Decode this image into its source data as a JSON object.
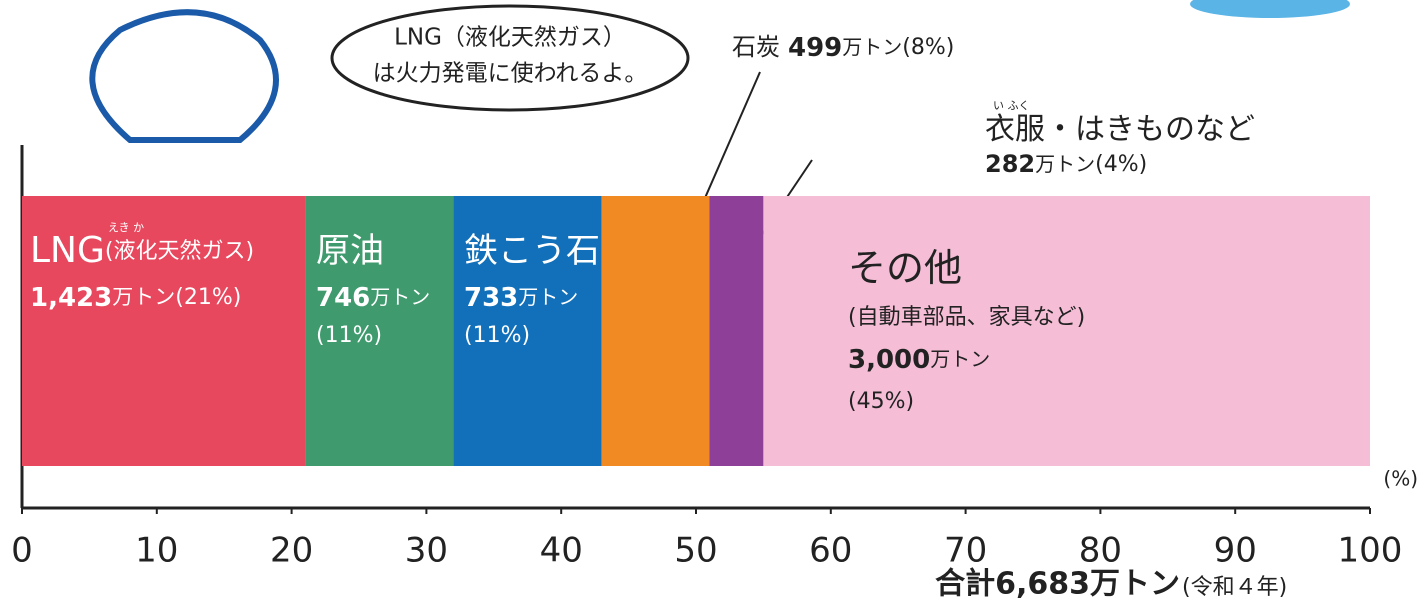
{
  "chart_data": {
    "type": "stacked-bar",
    "bubble": [
      "LNG（液化天然ガス）",
      "は火力発電に使われるよ。"
    ],
    "series": [
      {
        "name": "LNG",
        "note": "(液化天然ガス)",
        "ruby": "えき か",
        "amount": "1,423",
        "unit": "万トン",
        "values": [
          21
        ],
        "value_labels": [
          "(21%)"
        ],
        "color": "#e8485e"
      },
      {
        "name": "原油",
        "amount": "746",
        "unit": "万トン",
        "values": [
          11
        ],
        "value_labels": [
          "(11%)"
        ],
        "color": "#3f9a6e"
      },
      {
        "name": "鉄こう石",
        "amount": "733",
        "unit": "万トン",
        "values": [
          11
        ],
        "value_labels": [
          "(11%)"
        ],
        "color": "#1170b9"
      },
      {
        "name": "石炭",
        "amount": "499",
        "unit": "万トン",
        "values": [
          8
        ],
        "value_labels": [
          "(8%)"
        ],
        "color": "#f28a24"
      },
      {
        "name": "衣服・はきものなど",
        "ruby": "い ふく",
        "amount": "282",
        "unit": "万トン",
        "values": [
          4
        ],
        "value_labels": [
          "(4%)"
        ],
        "color": "#8e3f98"
      },
      {
        "name": "その他",
        "sub": "(自動車部品、家具など)",
        "amount": "3,000",
        "unit": "万トン",
        "values": [
          45
        ],
        "value_labels": [
          "(45%)"
        ],
        "color": "#f5bed6"
      }
    ],
    "xlim": [
      0,
      100
    ],
    "xticks": [
      0,
      10,
      20,
      30,
      40,
      50,
      60,
      70,
      80,
      90,
      100
    ],
    "x_unit": "(%)",
    "total": "合計6,683万トン",
    "total_note": "(令和４年)"
  }
}
